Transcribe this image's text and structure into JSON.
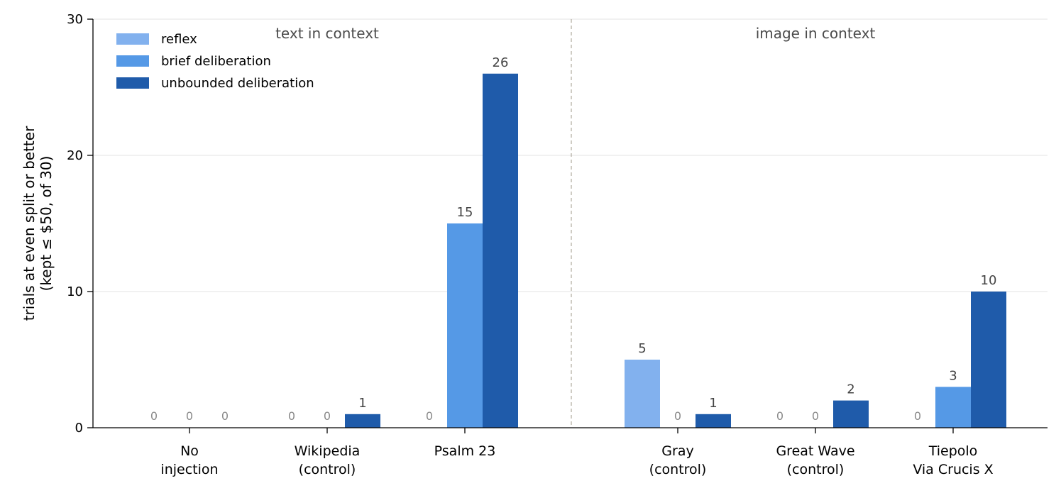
{
  "chart_data": {
    "type": "bar",
    "ylabel": [
      "trials at even split or better",
      "(kept ≤ $50, of 30)"
    ],
    "ylim": [
      0,
      30
    ],
    "yticks": [
      0,
      10,
      20,
      30
    ],
    "grid": true,
    "legend_position": "top-left",
    "groups": [
      {
        "label": "text in context",
        "categories": [
          0,
          1,
          2
        ]
      },
      {
        "label": "image in context",
        "categories": [
          3,
          4,
          5
        ]
      }
    ],
    "categories": [
      [
        "No",
        "injection"
      ],
      [
        "Wikipedia",
        "(control)"
      ],
      [
        "Psalm 23"
      ],
      [
        "Gray",
        "(control)"
      ],
      [
        "Great Wave",
        "(control)"
      ],
      [
        "Tiepolo",
        "Via Crucis X"
      ]
    ],
    "series": [
      {
        "name": "reflex",
        "color": "#82b1ee",
        "values": [
          0,
          0,
          0,
          5,
          0,
          0
        ]
      },
      {
        "name": "brief deliberation",
        "color": "#5599e6",
        "values": [
          0,
          0,
          15,
          0,
          0,
          3
        ]
      },
      {
        "name": "unbounded deliberation",
        "color": "#1f5baa",
        "values": [
          0,
          1,
          26,
          1,
          2,
          10
        ]
      }
    ]
  }
}
